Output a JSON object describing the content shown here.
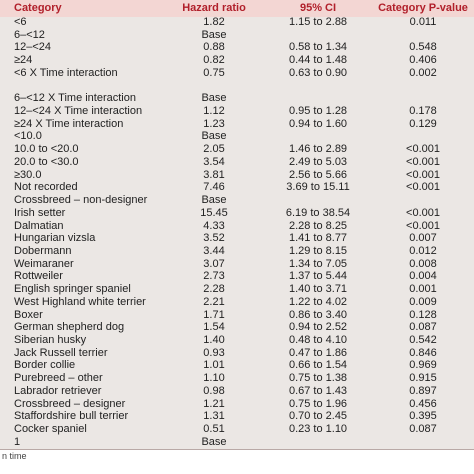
{
  "table": {
    "header": [
      "Category",
      "Hazard ratio",
      "95% CI",
      "Category P-value"
    ],
    "rows": [
      [
        "<6",
        "1.82",
        "1.15 to 2.88",
        "0.011"
      ],
      [
        "6–<12",
        "Base"
      ],
      [
        "12–<24",
        "0.88",
        "0.58 to 1.34",
        "0.548"
      ],
      [
        "≥24",
        "0.82",
        "0.44 to 1.48",
        "0.406"
      ],
      [
        "<6 X Time interaction",
        "0.75",
        "0.63 to 0.90",
        "0.002"
      ],
      [],
      [
        "6–<12 X Time interaction",
        "Base"
      ],
      [
        "12–<24 X Time interaction",
        "1.12",
        "0.95 to 1.28",
        "0.178"
      ],
      [
        "≥24 X Time interaction",
        "1.23",
        "0.94 to 1.60",
        "0.129"
      ],
      [
        "<10.0",
        "Base"
      ],
      [
        "10.0 to <20.0",
        "2.05",
        "1.46 to 2.89",
        "<0.001"
      ],
      [
        "20.0 to <30.0",
        "3.54",
        "2.49 to 5.03",
        "<0.001"
      ],
      [
        "≥30.0",
        "3.81",
        "2.56 to 5.66",
        "<0.001"
      ],
      [
        "Not recorded",
        "7.46",
        "3.69 to 15.11",
        "<0.001"
      ],
      [
        "Crossbreed – non-designer",
        "Base"
      ],
      [
        "Irish setter",
        "15.45",
        "6.19 to 38.54",
        "<0.001"
      ],
      [
        "Dalmatian",
        "4.33",
        "2.28 to 8.25",
        "<0.001"
      ],
      [
        "Hungarian vizsla",
        "3.52",
        "1.41 to 8.77",
        "0.007"
      ],
      [
        "Dobermann",
        "3.44",
        "1.29 to 8.15",
        "0.012"
      ],
      [
        "Weimaraner",
        "3.07",
        "1.34 to 7.05",
        "0.008"
      ],
      [
        "Rottweiler",
        "2.73",
        "1.37 to 5.44",
        "0.004"
      ],
      [
        "English springer spaniel",
        "2.28",
        "1.40 to 3.71",
        "0.001"
      ],
      [
        "West Highland white terrier",
        "2.21",
        "1.22 to 4.02",
        "0.009"
      ],
      [
        "Boxer",
        "1.71",
        "0.86 to 3.40",
        "0.128"
      ],
      [
        "German shepherd dog",
        "1.54",
        "0.94 to 2.52",
        "0.087"
      ],
      [
        "Siberian husky",
        "1.40",
        "0.48 to 4.10",
        "0.542"
      ],
      [
        "Jack Russell terrier",
        "0.93",
        "0.47 to 1.86",
        "0.846"
      ],
      [
        "Border collie",
        "1.01",
        "0.66 to 1.54",
        "0.969"
      ],
      [
        "Purebreed – other",
        "1.10",
        "0.75 to 1.38",
        "0.915"
      ],
      [
        "Labrador retriever",
        "0.98",
        "0.67 to 1.43",
        "0.897"
      ],
      [
        "Crossbreed – designer",
        "1.21",
        "0.75 to 1.96",
        "0.456"
      ],
      [
        "Staffordshire bull terrier",
        "1.31",
        "0.70 to 2.45",
        "0.395"
      ],
      [
        "Cocker spaniel",
        "0.51",
        "0.23 to 1.10",
        "0.087"
      ],
      [
        "1",
        "Base"
      ]
    ],
    "footnote": "n time"
  }
}
